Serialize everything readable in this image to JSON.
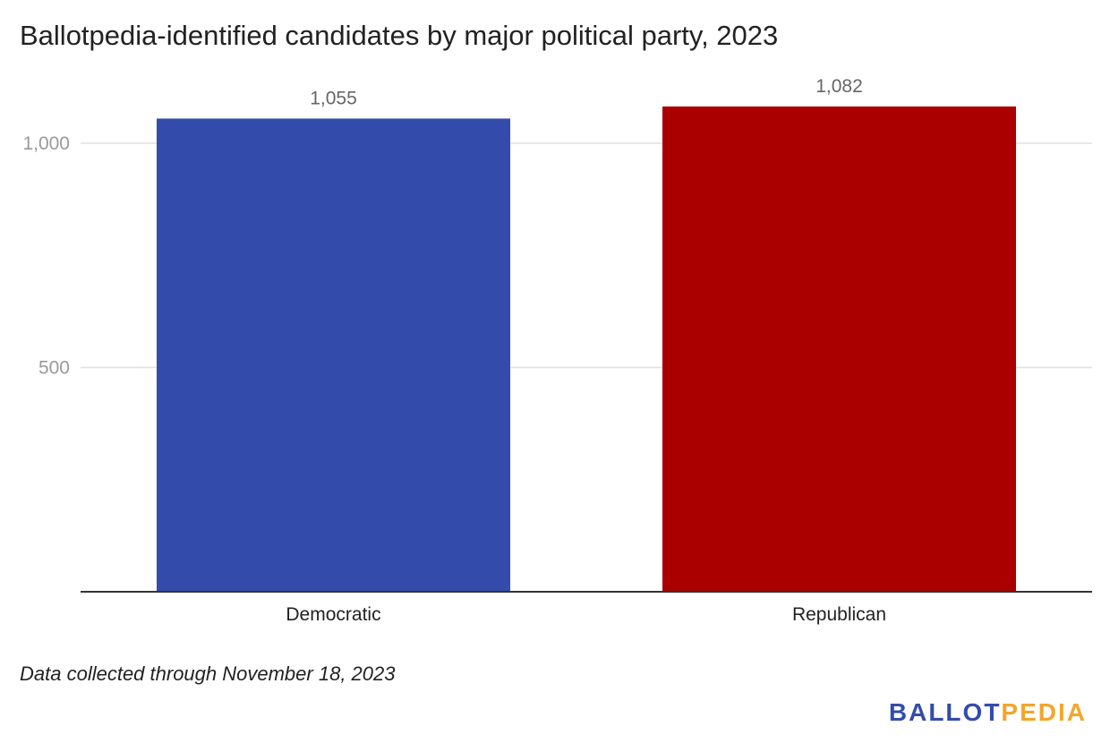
{
  "chart_data": {
    "type": "bar",
    "title": "Ballotpedia-identified candidates by major political party, 2023",
    "categories": [
      "Democratic",
      "Republican"
    ],
    "values": [
      1055,
      1082
    ],
    "data_labels": [
      "1,055",
      "1,082"
    ],
    "colors": [
      "#334CAB",
      "#AB0000"
    ],
    "ylim": [
      0,
      1000
    ],
    "yticks": [
      500,
      1000
    ],
    "ytick_labels": [
      "500",
      "1,000"
    ],
    "grid": true,
    "legend": "none",
    "xlabel": "",
    "ylabel": ""
  },
  "note": "Data collected through November 18, 2023",
  "logo": {
    "part1": "BALLOT",
    "part2": "PEDIA",
    "color1": "#334CAB",
    "color2": "#F3A52B"
  }
}
